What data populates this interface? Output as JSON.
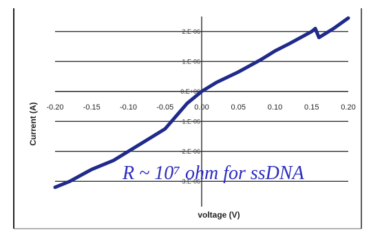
{
  "chart_data": {
    "type": "line",
    "title": "",
    "xlabel": "voltage (V)",
    "ylabel": "Current (A)",
    "xlim": [
      -0.2,
      0.2
    ],
    "ylim": [
      -3.5e-06,
      2.5e-06
    ],
    "x_tick_labels": [
      "-0.20",
      "-0.15",
      "-0.10",
      "-0.05",
      "0.00",
      "0.05",
      "0.10",
      "0.15",
      "0.20"
    ],
    "y_tick_labels": [
      "2.E-06",
      "1.E-06",
      "0.E+00",
      "-1.E-06",
      "-2.E-06",
      "-3.E-06"
    ],
    "grid": "horizontal",
    "annotation": "R ~ 10⁷ ohm for ssDNA",
    "line_color": "#1f2a8a",
    "series": [
      {
        "x": [
          -0.2,
          -0.18,
          -0.15,
          -0.12,
          -0.1,
          -0.08,
          -0.05,
          -0.02,
          0.0,
          0.02,
          0.05,
          0.08,
          0.1,
          0.12,
          0.15,
          0.155,
          0.16,
          0.18,
          0.2
        ],
        "y": [
          -3.2e-06,
          -3e-06,
          -2.6e-06,
          -2.3e-06,
          -2e-06,
          -1.7e-06,
          -1.25e-06,
          -4e-07,
          0.0,
          3e-07,
          6.5e-07,
          1.05e-06,
          1.35e-06,
          1.6e-06,
          2e-06,
          2.1e-06,
          1.8e-06,
          2.1e-06,
          2.45e-06
        ]
      }
    ]
  }
}
